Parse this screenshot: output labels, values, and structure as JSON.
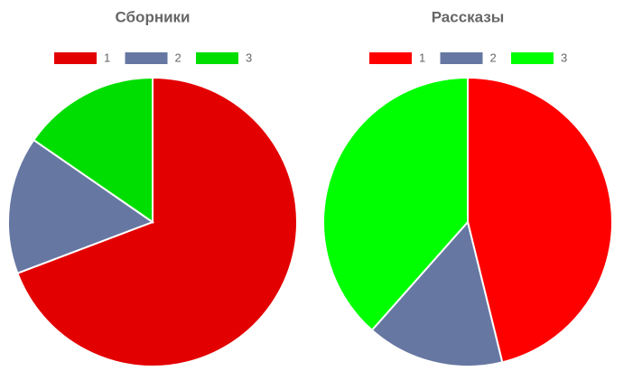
{
  "chart_data": [
    {
      "type": "pie",
      "title": "Сборники",
      "categories": [
        "1",
        "2",
        "3"
      ],
      "values": [
        9,
        2,
        2
      ],
      "colors": [
        "#e30000",
        "#6677a2",
        "#00dd00"
      ]
    },
    {
      "type": "pie",
      "title": "Рассказы",
      "categories": [
        "1",
        "2",
        "3"
      ],
      "values": [
        6,
        2,
        5
      ],
      "colors": [
        "#ff0000",
        "#6677a2",
        "#00ff00"
      ]
    }
  ]
}
